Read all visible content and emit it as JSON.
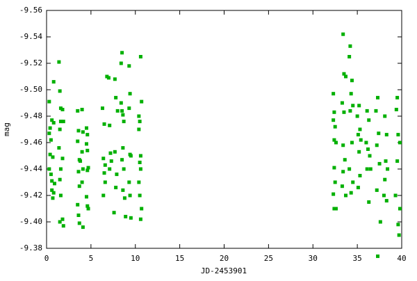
{
  "chart_data": {
    "type": "scatter",
    "xlabel": "JD-2453901",
    "ylabel": "mag",
    "color": "#00b000",
    "xlim": [
      0,
      40
    ],
    "xticks": [
      0,
      5,
      10,
      15,
      20,
      25,
      30,
      35,
      40
    ],
    "ylim": [
      -9.38,
      -9.56
    ],
    "yticks": [
      {
        "value": -9.38,
        "label": "-9.38"
      },
      {
        "value": -9.4,
        "label": "-9.40"
      },
      -9.42,
      -9.44,
      -9.46,
      -9.48,
      {
        "value": -9.5,
        "label": "-9.50"
      },
      -9.52,
      -9.54,
      -9.56
    ],
    "grid": false,
    "x": [
      0.3,
      0.4,
      0.3,
      0.4,
      0.3,
      0.5,
      0.6,
      0.6,
      0.7,
      0.5,
      0.6,
      0.8,
      0.8,
      0.7,
      0.9,
      0.8,
      1.4,
      1.5,
      1.6,
      1.6,
      1.5,
      1.4,
      1.6,
      1.5,
      1.6,
      1.5,
      1.8,
      1.8,
      1.9,
      1.8,
      1.9,
      3.5,
      3.6,
      3.5,
      3.7,
      3.6,
      3.7,
      3.5,
      3.6,
      3.7,
      3.8,
      4.0,
      4.1,
      4.0,
      4.1,
      4.0,
      4.1,
      4.5,
      4.6,
      4.5,
      4.6,
      4.7,
      4.6,
      4.5,
      4.6,
      4.7,
      6.3,
      6.5,
      6.4,
      6.6,
      6.5,
      6.6,
      6.4,
      6.8,
      7.0,
      7.1,
      7.2,
      7.3,
      7.1,
      7.7,
      7.8,
      7.7,
      7.9,
      7.8,
      7.6,
      8.0,
      8.5,
      8.4,
      8.5,
      8.6,
      8.7,
      8.6,
      8.5,
      8.7,
      8.6,
      8.8,
      8.9,
      8.4,
      9.3,
      9.4,
      9.3,
      9.4,
      9.5,
      9.3,
      9.4,
      9.5,
      10.6,
      10.7,
      10.4,
      10.5,
      10.4,
      10.6,
      10.5,
      10.6,
      10.4,
      10.5,
      10.7,
      10.6,
      32.3,
      32.4,
      32.3,
      32.5,
      32.4,
      32.6,
      32.4,
      32.5,
      32.3,
      32.4,
      32.6,
      33.4,
      33.5,
      33.7,
      33.3,
      33.5,
      33.4,
      33.6,
      33.4,
      33.3,
      33.7,
      34.2,
      34.1,
      34.4,
      34.3,
      34.5,
      34.2,
      34.4,
      34.1,
      34.5,
      34.3,
      35.2,
      35.0,
      35.3,
      35.1,
      35.4,
      35.2,
      35.3,
      35.1,
      36.1,
      36.3,
      36.0,
      36.2,
      36.4,
      36.1,
      36.3,
      36.5,
      37.3,
      37.1,
      37.4,
      37.2,
      37.5,
      37.2,
      37.6,
      37.3,
      38.1,
      38.3,
      38.2,
      38.4,
      38.1,
      38.3,
      38.0,
      39.5,
      39.4,
      39.6,
      39.8,
      39.5,
      39.3,
      39.6,
      39.7,
      39.8
    ],
    "values": [
      -9.491,
      -9.471,
      -9.467,
      -9.451,
      -9.44,
      -9.436,
      -9.431,
      -9.424,
      -9.418,
      -9.462,
      -9.477,
      -9.506,
      -9.475,
      -9.449,
      -9.429,
      -9.422,
      -9.521,
      -9.499,
      -9.486,
      -9.476,
      -9.47,
      -9.456,
      -9.44,
      -9.432,
      -9.42,
      -9.4,
      -9.402,
      -9.485,
      -9.476,
      -9.448,
      -9.397,
      -9.484,
      -9.469,
      -9.461,
      -9.447,
      -9.438,
      -9.427,
      -9.413,
      -9.405,
      -9.399,
      -9.446,
      -9.485,
      -9.468,
      -9.453,
      -9.44,
      -9.43,
      -9.396,
      -9.471,
      -9.466,
      -9.459,
      -9.454,
      -9.441,
      -9.439,
      -9.419,
      -9.412,
      -9.41,
      -9.486,
      -9.474,
      -9.448,
      -9.443,
      -9.437,
      -9.43,
      -9.42,
      -9.51,
      -9.509,
      -9.473,
      -9.452,
      -9.446,
      -9.44,
      -9.508,
      -9.494,
      -9.453,
      -9.436,
      -9.426,
      -9.407,
      -9.484,
      -9.528,
      -9.52,
      -9.484,
      -9.481,
      -9.476,
      -9.456,
      -9.447,
      -9.44,
      -9.424,
      -9.418,
      -9.404,
      -9.49,
      -9.518,
      -9.497,
      -9.486,
      -9.451,
      -9.45,
      -9.43,
      -9.42,
      -9.403,
      -9.525,
      -9.491,
      -9.48,
      -9.476,
      -9.47,
      -9.45,
      -9.445,
      -9.44,
      -9.43,
      -9.42,
      -9.41,
      -9.402,
      -9.497,
      -9.483,
      -9.477,
      -9.472,
      -9.462,
      -9.46,
      -9.441,
      -9.43,
      -9.421,
      -9.41,
      -9.41,
      -9.542,
      -9.512,
      -9.51,
      -9.49,
      -9.483,
      -9.458,
      -9.447,
      -9.438,
      -9.427,
      -9.42,
      -9.533,
      -9.525,
      -9.507,
      -9.497,
      -9.488,
      -9.484,
      -9.46,
      -9.44,
      -9.43,
      -9.422,
      -9.488,
      -9.48,
      -9.47,
      -9.466,
      -9.462,
      -9.453,
      -9.435,
      -9.426,
      -9.484,
      -9.477,
      -9.46,
      -9.455,
      -9.45,
      -9.44,
      -9.415,
      -9.44,
      -9.494,
      -9.484,
      -9.467,
      -9.458,
      -9.444,
      -9.424,
      -9.4,
      -9.374,
      -9.48,
      -9.466,
      -9.446,
      -9.44,
      -9.432,
      -9.416,
      -9.42,
      -9.494,
      -9.485,
      -9.466,
      -9.46,
      -9.446,
      -9.42,
      -9.398,
      -9.39,
      -9.41
    ]
  }
}
